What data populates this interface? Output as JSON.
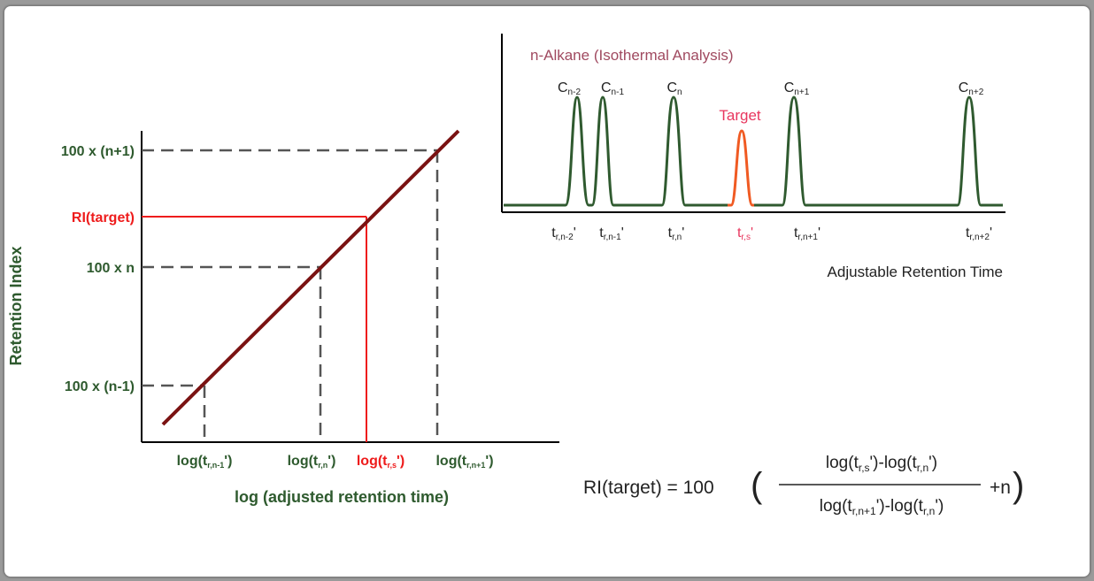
{
  "left_chart": {
    "ylabel": "Retention Index",
    "xlabel": "log (adjusted retention time)",
    "y_ticks": {
      "n_plus_1": "100 x (n+1)",
      "target": "RI(target)",
      "n": "100 x n",
      "n_minus_1": "100 x (n-1)"
    },
    "x_ticks": {
      "n_minus_1": {
        "main": "log(t",
        "sub": "r,n-1",
        "tail": "')"
      },
      "n": {
        "main": "log(t",
        "sub": "r,n",
        "tail": "')"
      },
      "s": {
        "main": "log(t",
        "sub": "r,s",
        "tail": "')"
      },
      "n_plus_1": {
        "main": "log(t",
        "sub": "r,n+1",
        "tail": "')"
      }
    }
  },
  "chromatogram": {
    "title": "n-Alkane (Isothermal Analysis)",
    "xlabel": "Adjustable Retention Time",
    "target_label": "Target",
    "peak_labels": {
      "cn_minus_2": {
        "main": "C",
        "sub": "n-2"
      },
      "cn_minus_1": {
        "main": "C",
        "sub": "n-1"
      },
      "cn": {
        "main": "C",
        "sub": "n"
      },
      "cn_plus_1": {
        "main": "C",
        "sub": "n+1"
      },
      "cn_plus_2": {
        "main": "C",
        "sub": "n+2"
      }
    },
    "time_labels": {
      "n_minus_2": {
        "main": "t",
        "sub": "r,n-2",
        "tail": "'"
      },
      "n_minus_1": {
        "main": "t",
        "sub": "r,n-1",
        "tail": "'"
      },
      "n": {
        "main": "t",
        "sub": "r,n",
        "tail": "'"
      },
      "s": {
        "main": "t",
        "sub": "r,s",
        "tail": "'"
      },
      "n_plus_1": {
        "main": "t",
        "sub": "r,n+1",
        "tail": "'"
      },
      "n_plus_2": {
        "main": "t",
        "sub": "r,n+2",
        "tail": "'"
      }
    }
  },
  "formula": {
    "lhs": "RI(target) = 100",
    "numerator": {
      "p1": "log(t",
      "s1": "r,s",
      "p2": "')-log(t",
      "s2": "r,n",
      "p3": "')"
    },
    "denominator": {
      "p1": "log(t",
      "s1": "r,n+1",
      "p2": "')-log(t",
      "s2": "r,n",
      "p3": "')"
    },
    "tail": "+n"
  },
  "colors": {
    "green_text": "#2e5a2e",
    "red": "#ee1c1c",
    "orange_peak": "#f05a22",
    "line": "#7a1212",
    "peak_green": "#2f5a2f",
    "title_color": "#a04a60",
    "target_color": "#e8365e"
  }
}
